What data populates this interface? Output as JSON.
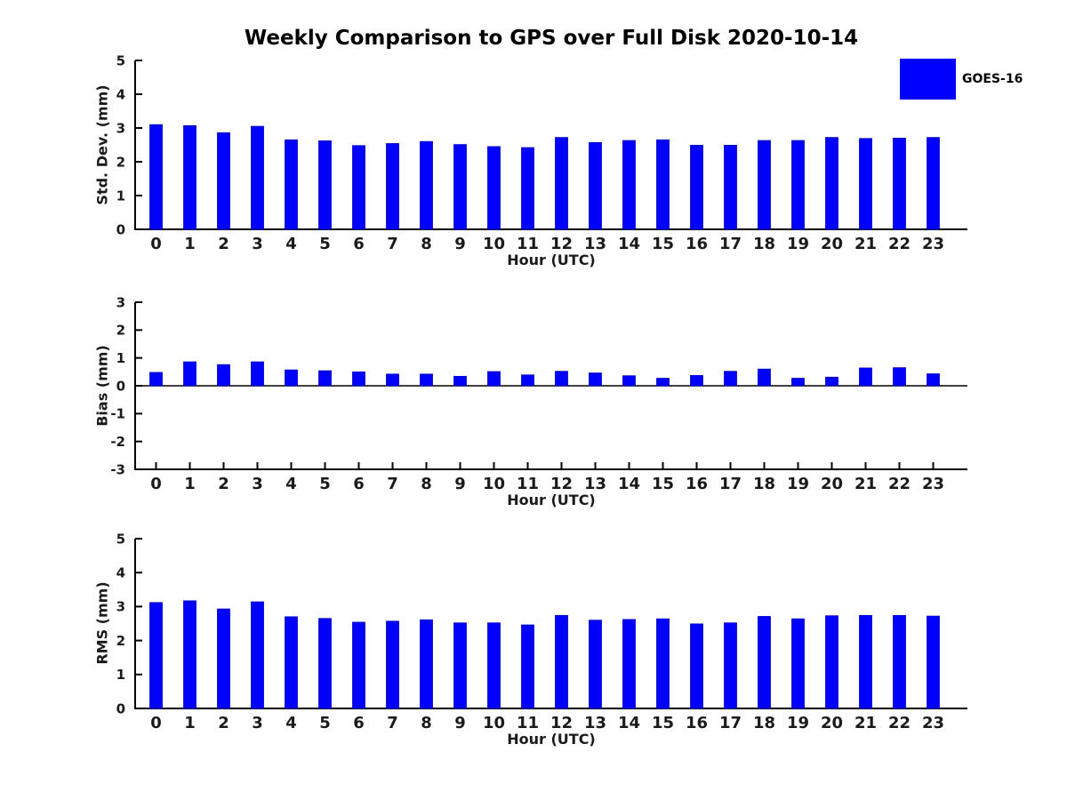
{
  "figure": {
    "title": "Weekly Comparison to GPS over Full Disk 2020-10-14",
    "legend": {
      "label": "GOES-16",
      "color": "#0000ff"
    }
  },
  "colors": {
    "bar": "#0000ff",
    "bar_edge": "#0000c0",
    "axis": "#000000",
    "tick_label": "#1a1a1a"
  },
  "chart_data": [
    {
      "type": "bar",
      "ylabel": "Std. Dev. (mm)",
      "xlabel": "Hour (UTC)",
      "categories": [
        "0",
        "1",
        "2",
        "3",
        "4",
        "5",
        "6",
        "7",
        "8",
        "9",
        "10",
        "11",
        "12",
        "13",
        "14",
        "15",
        "16",
        "17",
        "18",
        "19",
        "20",
        "21",
        "22",
        "23"
      ],
      "series": [
        {
          "name": "GOES-16",
          "values": [
            3.1,
            3.07,
            2.86,
            3.05,
            2.65,
            2.62,
            2.48,
            2.54,
            2.6,
            2.51,
            2.45,
            2.42,
            2.72,
            2.57,
            2.63,
            2.65,
            2.49,
            2.49,
            2.63,
            2.63,
            2.72,
            2.69,
            2.7,
            2.72
          ]
        }
      ],
      "ylim": [
        0,
        5
      ],
      "ytick_step": 1,
      "grid": false,
      "legend_position": "upper-right-outside"
    },
    {
      "type": "bar",
      "ylabel": "Bias (mm)",
      "xlabel": "Hour (UTC)",
      "categories": [
        "0",
        "1",
        "2",
        "3",
        "4",
        "5",
        "6",
        "7",
        "8",
        "9",
        "10",
        "11",
        "12",
        "13",
        "14",
        "15",
        "16",
        "17",
        "18",
        "19",
        "20",
        "21",
        "22",
        "23"
      ],
      "series": [
        {
          "name": "GOES-16",
          "values": [
            0.48,
            0.86,
            0.76,
            0.86,
            0.57,
            0.54,
            0.5,
            0.42,
            0.42,
            0.34,
            0.51,
            0.39,
            0.52,
            0.46,
            0.36,
            0.27,
            0.37,
            0.52,
            0.6,
            0.27,
            0.31,
            0.64,
            0.65,
            0.43
          ]
        }
      ],
      "ylim": [
        -3,
        3
      ],
      "ytick_step": 1,
      "grid": false,
      "zero_line": true
    },
    {
      "type": "bar",
      "ylabel": "RMS (mm)",
      "xlabel": "Hour (UTC)",
      "categories": [
        "0",
        "1",
        "2",
        "3",
        "4",
        "5",
        "6",
        "7",
        "8",
        "9",
        "10",
        "11",
        "12",
        "13",
        "14",
        "15",
        "16",
        "17",
        "18",
        "19",
        "20",
        "21",
        "22",
        "23"
      ],
      "series": [
        {
          "name": "GOES-16",
          "values": [
            3.12,
            3.17,
            2.93,
            3.14,
            2.7,
            2.65,
            2.54,
            2.57,
            2.61,
            2.52,
            2.52,
            2.46,
            2.74,
            2.6,
            2.62,
            2.64,
            2.49,
            2.52,
            2.71,
            2.64,
            2.73,
            2.74,
            2.74,
            2.72
          ]
        }
      ],
      "ylim": [
        0,
        5
      ],
      "ytick_step": 1,
      "grid": false
    }
  ]
}
